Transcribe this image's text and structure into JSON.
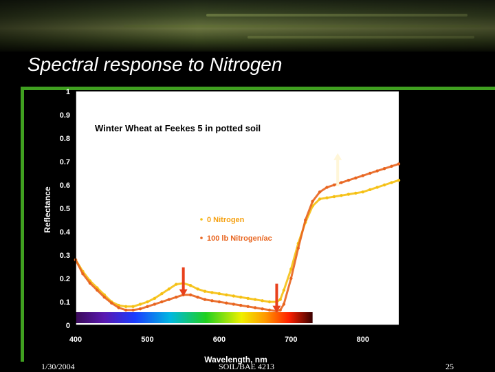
{
  "slide": {
    "title": "Spectral response to Nitrogen",
    "date": "1/30/2004",
    "course": "SOIL/BAE 4213",
    "page": "25"
  },
  "colors": {
    "accent_green": "#40a020",
    "plot_background": "#ffffff",
    "series_0": "#f5c012",
    "series_100": "#e8641e",
    "arrow_red": "#e8401c",
    "arrow_cream": "#fff6d8"
  },
  "chart_data": {
    "type": "scatter",
    "title": "Winter Wheat at Feekes 5 in potted soil",
    "xlabel": "Wavelength, nm",
    "ylabel": "Reflectance",
    "xlim": [
      400,
      850
    ],
    "ylim": [
      0,
      1
    ],
    "xticks": [
      "400",
      "500",
      "600",
      "700",
      "800"
    ],
    "yticks": [
      "0",
      "0.1",
      "0.2",
      "0.3",
      "0.4",
      "0.5",
      "0.6",
      "0.7",
      "0.8",
      "0.9",
      "1"
    ],
    "grid": false,
    "legend_position": "center",
    "visible_spectrum_band": [
      400,
      730
    ],
    "series": [
      {
        "name": "0 Nitrogen",
        "color": "#f5c012",
        "x": [
          400,
          410,
          420,
          430,
          440,
          450,
          460,
          470,
          480,
          490,
          500,
          510,
          520,
          530,
          540,
          550,
          560,
          570,
          580,
          590,
          600,
          610,
          620,
          630,
          640,
          650,
          660,
          670,
          680,
          685,
          690,
          700,
          710,
          720,
          730,
          740,
          750,
          760,
          770,
          780,
          790,
          800,
          810,
          820,
          830,
          840,
          850
        ],
        "y": [
          0.28,
          0.23,
          0.19,
          0.16,
          0.13,
          0.1,
          0.085,
          0.08,
          0.08,
          0.09,
          0.1,
          0.115,
          0.135,
          0.155,
          0.175,
          0.18,
          0.17,
          0.155,
          0.145,
          0.14,
          0.135,
          0.13,
          0.125,
          0.12,
          0.115,
          0.11,
          0.105,
          0.1,
          0.1,
          0.11,
          0.15,
          0.24,
          0.35,
          0.44,
          0.51,
          0.54,
          0.545,
          0.55,
          0.555,
          0.56,
          0.565,
          0.57,
          0.58,
          0.59,
          0.6,
          0.61,
          0.62
        ]
      },
      {
        "name": "100 lb Nitrogen/ac",
        "color": "#e8641e",
        "x": [
          400,
          410,
          420,
          430,
          440,
          450,
          460,
          470,
          480,
          490,
          500,
          510,
          520,
          530,
          540,
          550,
          560,
          570,
          580,
          590,
          600,
          610,
          620,
          630,
          640,
          650,
          660,
          670,
          680,
          685,
          690,
          700,
          710,
          720,
          730,
          740,
          750,
          760,
          770,
          780,
          790,
          800,
          810,
          820,
          830,
          840,
          850
        ],
        "y": [
          0.28,
          0.22,
          0.18,
          0.15,
          0.12,
          0.095,
          0.075,
          0.065,
          0.065,
          0.07,
          0.08,
          0.09,
          0.1,
          0.11,
          0.12,
          0.13,
          0.13,
          0.12,
          0.11,
          0.105,
          0.1,
          0.095,
          0.09,
          0.085,
          0.08,
          0.075,
          0.07,
          0.065,
          0.06,
          0.065,
          0.09,
          0.2,
          0.33,
          0.45,
          0.53,
          0.57,
          0.59,
          0.6,
          0.61,
          0.62,
          0.63,
          0.64,
          0.65,
          0.66,
          0.67,
          0.68,
          0.69
        ]
      }
    ],
    "annotations": [
      {
        "type": "arrow",
        "direction": "down",
        "color": "#e8401c",
        "x": 550,
        "y": 0.13
      },
      {
        "type": "arrow",
        "direction": "down",
        "color": "#e8401c",
        "x": 680,
        "y": 0.06
      },
      {
        "type": "arrow",
        "direction": "up",
        "color": "#fff6d8",
        "x": 765,
        "y": 0.73
      }
    ]
  }
}
